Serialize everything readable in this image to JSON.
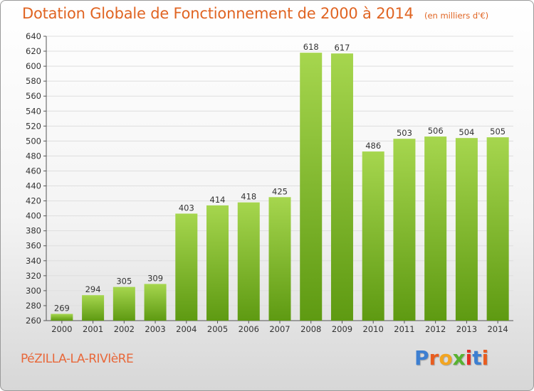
{
  "header": {
    "title": "Dotation Globale de Fonctionnement de 2000 à 2014",
    "unit": "(en milliers d'€)"
  },
  "footer": {
    "commune": "PéZILLA-LA-RIVIèRE",
    "logo": "Proxiti"
  },
  "colors": {
    "title": "#e06422",
    "bar_top": "#a6d64e",
    "bar_bottom": "#5e9a12",
    "logo": [
      "#3d7fd1",
      "#e85d1f",
      "#f2a521",
      "#58b231",
      "#e32d26",
      "#3d7fd1",
      "#e85d1f"
    ]
  },
  "chart_data": {
    "type": "bar",
    "categories": [
      "2000",
      "2001",
      "2002",
      "2003",
      "2004",
      "2005",
      "2006",
      "2007",
      "2008",
      "2009",
      "2010",
      "2011",
      "2012",
      "2013",
      "2014"
    ],
    "values": [
      269,
      294,
      305,
      309,
      403,
      414,
      418,
      425,
      618,
      617,
      486,
      503,
      506,
      504,
      505
    ],
    "title": "Dotation Globale de Fonctionnement de 2000 à 2014",
    "xlabel": "",
    "ylabel": "",
    "ylim": [
      260,
      640
    ],
    "yticks": [
      260,
      280,
      300,
      320,
      340,
      360,
      380,
      400,
      420,
      440,
      460,
      480,
      500,
      520,
      540,
      560,
      580,
      600,
      620,
      640
    ],
    "grid": true,
    "data_labels": true
  }
}
